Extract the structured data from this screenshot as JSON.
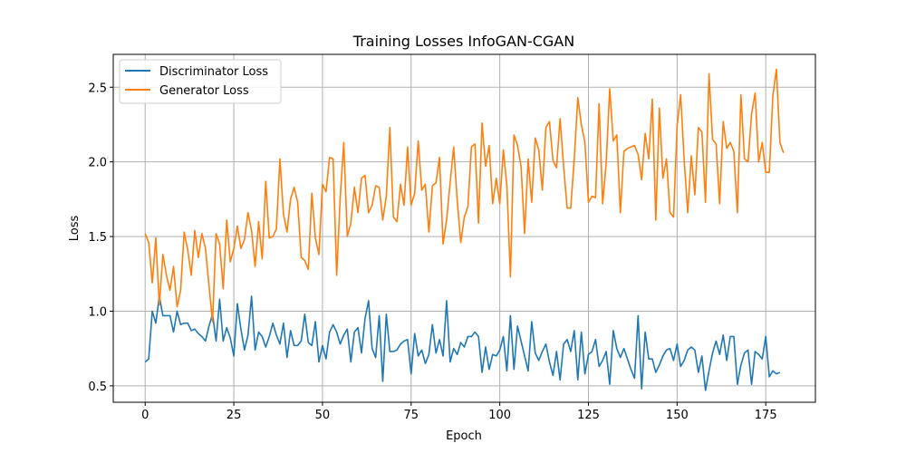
{
  "chart_data": {
    "type": "line",
    "title": "Training Losses InfoGAN-CGAN",
    "xlabel": "Epoch",
    "ylabel": "Loss",
    "xlim": [
      -9,
      189
    ],
    "ylim": [
      0.39,
      2.72
    ],
    "xticks": [
      0,
      25,
      50,
      75,
      100,
      125,
      150,
      175
    ],
    "yticks": [
      0.5,
      1.0,
      1.5,
      2.0,
      2.5
    ],
    "grid": true,
    "legend_position": "top-left",
    "series": [
      {
        "name": "Discriminator Loss",
        "color": "#1f77b4",
        "values": [
          0.66,
          0.68,
          1.0,
          0.92,
          1.1,
          0.97,
          0.97,
          0.97,
          0.86,
          1.0,
          0.91,
          0.92,
          0.92,
          0.87,
          0.88,
          0.85,
          0.83,
          0.8,
          0.9,
          0.98,
          0.8,
          1.08,
          0.8,
          0.89,
          0.82,
          0.7,
          1.05,
          0.88,
          0.74,
          0.84,
          1.1,
          0.74,
          0.86,
          0.83,
          0.76,
          0.83,
          0.92,
          0.84,
          0.78,
          0.92,
          0.69,
          0.87,
          0.77,
          0.77,
          0.8,
          0.98,
          0.79,
          0.77,
          0.93,
          0.66,
          0.77,
          0.68,
          0.86,
          0.91,
          0.86,
          0.78,
          0.84,
          0.88,
          0.66,
          0.86,
          0.89,
          0.72,
          0.95,
          1.07,
          0.75,
          0.69,
          0.97,
          0.53,
          0.98,
          0.73,
          0.73,
          0.74,
          0.78,
          0.8,
          0.81,
          0.58,
          0.85,
          0.7,
          0.74,
          0.65,
          0.71,
          0.91,
          0.72,
          0.81,
          0.7,
          1.07,
          0.66,
          0.75,
          0.71,
          0.79,
          0.76,
          0.83,
          0.83,
          0.86,
          0.83,
          0.59,
          0.76,
          0.61,
          0.71,
          0.7,
          0.74,
          0.83,
          0.6,
          0.97,
          0.61,
          0.9,
          0.8,
          0.7,
          0.6,
          0.93,
          0.72,
          0.67,
          0.73,
          0.78,
          0.66,
          0.57,
          0.73,
          0.54,
          0.78,
          0.81,
          0.73,
          0.87,
          0.54,
          0.86,
          0.58,
          0.71,
          0.73,
          0.81,
          0.63,
          0.67,
          0.73,
          0.51,
          0.87,
          0.75,
          0.69,
          0.75,
          0.68,
          0.61,
          0.55,
          0.97,
          0.48,
          0.86,
          0.68,
          0.68,
          0.59,
          0.64,
          0.7,
          0.74,
          0.75,
          0.67,
          0.78,
          0.63,
          0.67,
          0.74,
          0.76,
          0.74,
          0.59,
          0.7,
          0.47,
          0.6,
          0.72,
          0.8,
          0.71,
          0.84,
          0.67,
          0.83,
          0.83,
          0.51,
          0.64,
          0.72,
          0.74,
          0.51,
          0.73,
          0.71,
          0.68,
          0.83,
          0.56,
          0.6,
          0.58,
          0.59
        ]
      },
      {
        "name": "Generator Loss",
        "color": "#ff7f0e",
        "values": [
          1.52,
          1.46,
          1.19,
          1.49,
          1.04,
          1.38,
          1.24,
          1.14,
          1.3,
          1.03,
          1.14,
          1.53,
          1.41,
          1.24,
          1.54,
          1.36,
          1.52,
          1.42,
          1.17,
          0.93,
          1.52,
          1.45,
          1.15,
          1.61,
          1.33,
          1.42,
          1.57,
          1.42,
          1.48,
          1.66,
          1.54,
          1.3,
          1.6,
          1.35,
          1.87,
          1.49,
          1.5,
          1.55,
          2.02,
          1.65,
          1.53,
          1.75,
          1.83,
          1.73,
          1.36,
          1.34,
          1.28,
          1.79,
          1.49,
          1.38,
          1.85,
          1.8,
          2.03,
          2.02,
          1.24,
          1.76,
          2.13,
          1.5,
          1.59,
          1.83,
          1.66,
          1.89,
          1.91,
          1.66,
          1.71,
          1.84,
          1.83,
          1.61,
          1.77,
          2.23,
          1.63,
          1.6,
          1.85,
          1.71,
          2.1,
          1.71,
          1.79,
          2.14,
          1.81,
          1.85,
          1.53,
          1.84,
          1.86,
          2.03,
          1.45,
          1.61,
          1.86,
          2.1,
          1.74,
          1.46,
          1.63,
          1.7,
          2.1,
          2.12,
          1.59,
          2.26,
          1.97,
          2.11,
          1.72,
          1.89,
          1.72,
          2.08,
          1.84,
          1.23,
          2.18,
          2.11,
          1.97,
          1.52,
          2.02,
          1.73,
          2.16,
          2.08,
          1.81,
          2.23,
          2.27,
          2.01,
          1.96,
          2.29,
          1.97,
          1.69,
          1.69,
          2.02,
          2.43,
          2.25,
          2.13,
          1.73,
          1.77,
          1.76,
          2.39,
          1.72,
          1.99,
          2.49,
          2.14,
          2.18,
          1.66,
          2.07,
          2.09,
          2.1,
          2.11,
          2.05,
          1.88,
          2.19,
          2.02,
          2.42,
          1.61,
          2.36,
          1.89,
          2.02,
          1.66,
          1.63,
          2.24,
          2.45,
          2.01,
          1.66,
          2.04,
          1.78,
          2.23,
          2.2,
          1.73,
          2.59,
          2.15,
          2.12,
          1.72,
          2.27,
          2.09,
          2.13,
          2.07,
          1.66,
          2.45,
          2.02,
          2.0,
          2.32,
          2.46,
          2.0,
          2.13,
          1.93,
          1.93,
          2.44,
          2.62,
          2.13,
          2.06
        ]
      }
    ]
  }
}
